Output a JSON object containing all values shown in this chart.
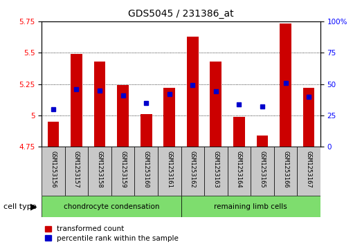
{
  "title": "GDS5045 / 231386_at",
  "samples": [
    "GSM1253156",
    "GSM1253157",
    "GSM1253158",
    "GSM1253159",
    "GSM1253160",
    "GSM1253161",
    "GSM1253162",
    "GSM1253163",
    "GSM1253164",
    "GSM1253165",
    "GSM1253166",
    "GSM1253167"
  ],
  "red_values": [
    4.95,
    5.49,
    5.43,
    5.24,
    5.01,
    5.22,
    5.63,
    5.43,
    4.99,
    4.84,
    5.73,
    5.22
  ],
  "blue_percentiles": [
    30,
    46,
    45,
    41,
    35,
    42,
    49,
    44,
    34,
    32,
    51,
    40
  ],
  "ylim_left": [
    4.75,
    5.75
  ],
  "ylim_right": [
    0,
    100
  ],
  "left_ticks": [
    4.75,
    5.0,
    5.25,
    5.5,
    5.75
  ],
  "right_ticks": [
    0,
    25,
    50,
    75,
    100
  ],
  "left_tick_labels": [
    "4.75",
    "5",
    "5.25",
    "5.5",
    "5.75"
  ],
  "right_tick_labels": [
    "0",
    "25",
    "50",
    "75",
    "100%"
  ],
  "groups": [
    {
      "label": "chondrocyte condensation",
      "start": 0,
      "end": 6,
      "color": "#7EDD6E"
    },
    {
      "label": "remaining limb cells",
      "start": 6,
      "end": 12,
      "color": "#7EDD6E"
    }
  ],
  "cell_type_label": "cell type",
  "legend_red": "transformed count",
  "legend_blue": "percentile rank within the sample",
  "bar_bottom": 4.75,
  "bar_color_red": "#CC0000",
  "bar_color_blue": "#0000CC",
  "bg_color": "#C8C8C8",
  "bar_width": 0.5
}
